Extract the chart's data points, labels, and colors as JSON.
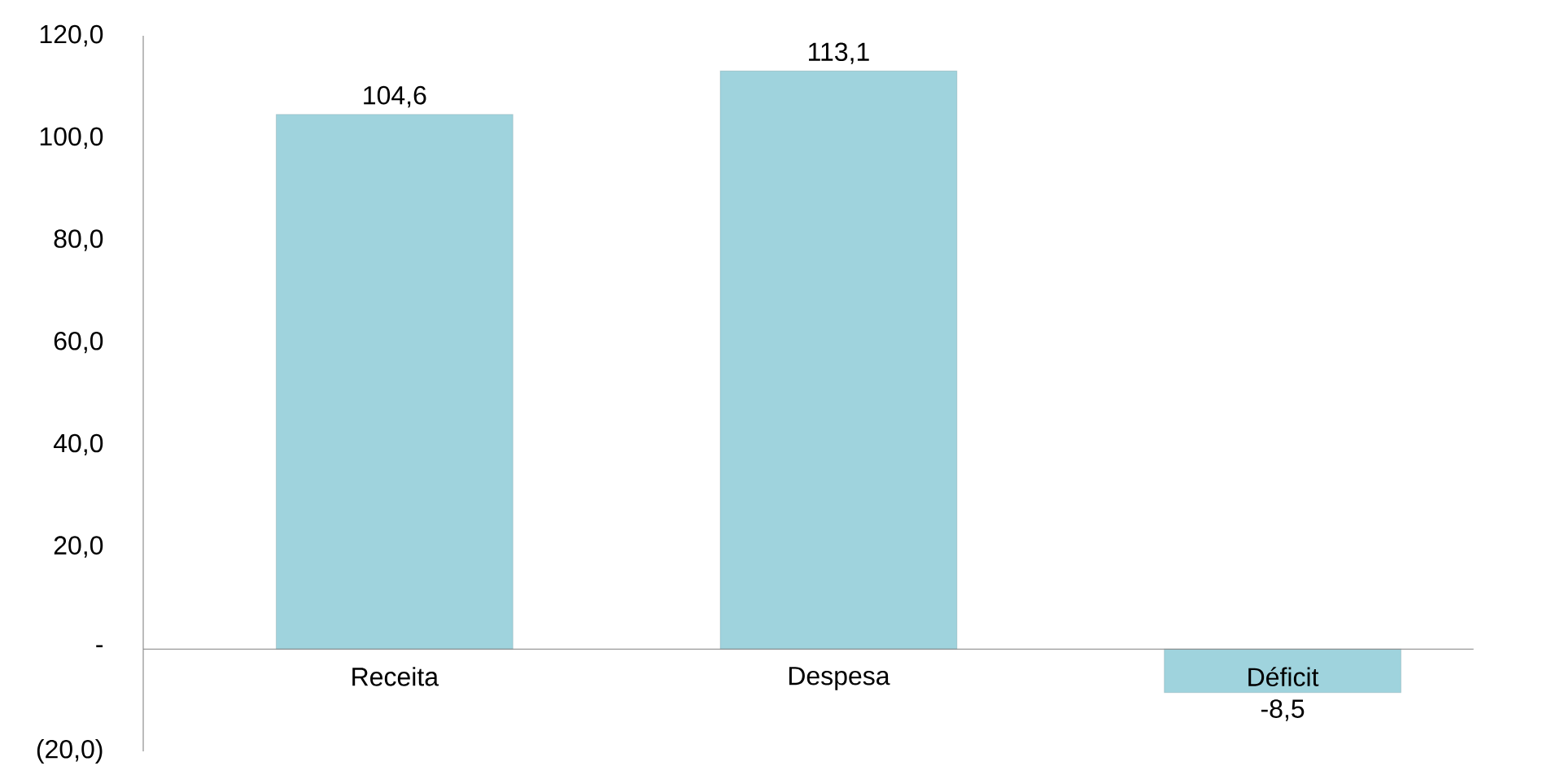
{
  "chart_data": {
    "type": "bar",
    "categories": [
      "Receita",
      "Despesa",
      "Déficit"
    ],
    "values": [
      104.6,
      113.1,
      -8.5
    ],
    "value_labels": [
      "104,6",
      "113,1",
      "-8,5"
    ],
    "color": "#9fd3dd",
    "ylim": [
      -20,
      120
    ],
    "yticks": [
      {
        "value": -20,
        "label": "(20,0)"
      },
      {
        "value": 0,
        "label": "-"
      },
      {
        "value": 20,
        "label": "20,0"
      },
      {
        "value": 40,
        "label": "40,0"
      },
      {
        "value": 60,
        "label": "60,0"
      },
      {
        "value": 80,
        "label": "80,0"
      },
      {
        "value": 100,
        "label": "100,0"
      },
      {
        "value": 120,
        "label": "120,0"
      }
    ],
    "grid": false
  }
}
